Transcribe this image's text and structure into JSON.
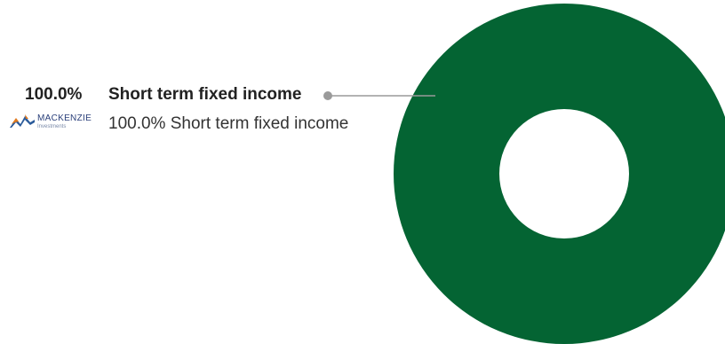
{
  "chart_data": {
    "type": "pie",
    "categories": [
      "Short term fixed income"
    ],
    "values": [
      100.0
    ],
    "colors": [
      "#046433"
    ],
    "hole": true,
    "callouts": [
      {
        "percent_text": "100.0%",
        "label": "Short term fixed income"
      }
    ],
    "legend": {
      "brand": {
        "name": "MACKENZIE",
        "sub": "Investments",
        "colors": [
          "#e07a1f",
          "#2a5a9a"
        ]
      },
      "text": "100.0% Short term fixed income"
    }
  },
  "colors": {
    "slice": "#046433",
    "leader": "#9a9a9a",
    "text": "#222222"
  }
}
